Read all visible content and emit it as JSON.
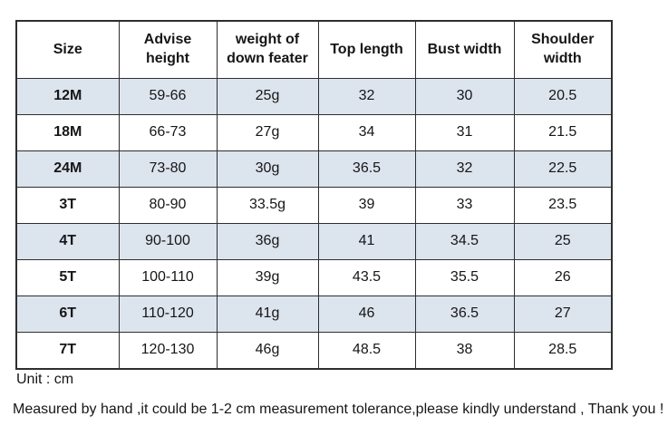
{
  "table": {
    "columns": [
      "Size",
      "Advise height",
      "weight of down feater",
      "Top length",
      "Bust width",
      "Shoulder width"
    ],
    "rows": [
      {
        "cells": [
          "12M",
          "59-66",
          "25g",
          "32",
          "30",
          "20.5"
        ],
        "shaded": true
      },
      {
        "cells": [
          "18M",
          "66-73",
          "27g",
          "34",
          "31",
          "21.5"
        ],
        "shaded": false
      },
      {
        "cells": [
          "24M",
          "73-80",
          "30g",
          "36.5",
          "32",
          "22.5"
        ],
        "shaded": true
      },
      {
        "cells": [
          "3T",
          "80-90",
          "33.5g",
          "39",
          "33",
          "23.5"
        ],
        "shaded": false
      },
      {
        "cells": [
          "4T",
          "90-100",
          "36g",
          "41",
          "34.5",
          "25"
        ],
        "shaded": true
      },
      {
        "cells": [
          "5T",
          "100-110",
          "39g",
          "43.5",
          "35.5",
          "26"
        ],
        "shaded": false
      },
      {
        "cells": [
          "6T",
          "110-120",
          "41g",
          "46",
          "36.5",
          "27"
        ],
        "shaded": true
      },
      {
        "cells": [
          "7T",
          "120-130",
          "46g",
          "48.5",
          "38",
          "28.5"
        ],
        "shaded": false
      }
    ]
  },
  "footer": {
    "unit": "Unit : cm",
    "note": "Measured by hand ,it could be 1-2 cm measurement tolerance,please kindly understand , Thank you !"
  },
  "colors": {
    "row_shade": "#dce4ee",
    "border": "#2e2e2e",
    "text": "#161616",
    "background": "#ffffff"
  }
}
